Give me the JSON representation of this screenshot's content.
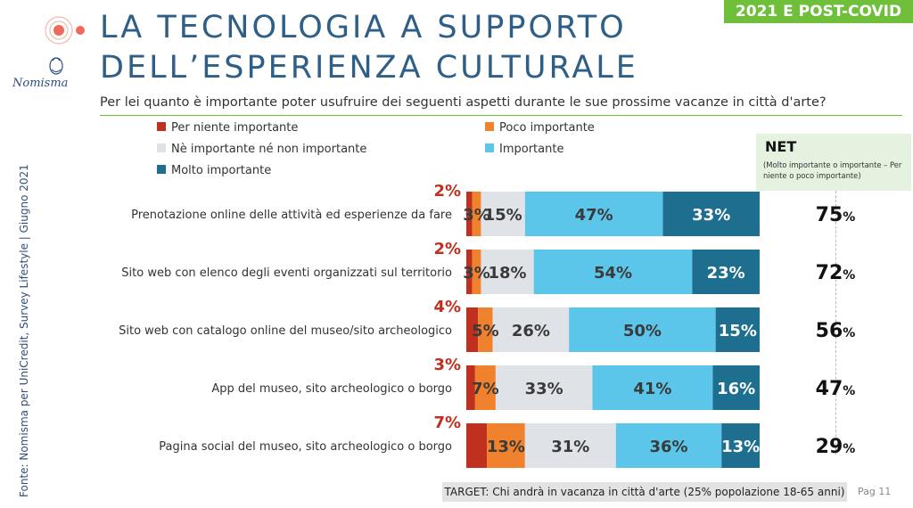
{
  "header": {
    "title_line1": "LA TECNOLOGIA A SUPPORTO",
    "title_line2": "DELL’ESPERIENZA CULTURALE",
    "badge": "2021 E POST-COVID",
    "brand": "Nomisma",
    "subtitle": "Per lei quanto è importante poter usufruire dei seguenti aspetti durante le sue prossime vacanze in città d'arte?"
  },
  "colors": {
    "per_niente": "#c0301e",
    "poco": "#f0822d",
    "ne_ne": "#dfe3e8",
    "importante": "#5cc6ea",
    "molto": "#1e6f8f",
    "accent_green": "#6fbf3b",
    "title_blue": "#2f5f86",
    "first_pct_red": "#c0301e"
  },
  "net": {
    "title": "NET",
    "description": "(Molto importante o importante – Per niente o poco importante)"
  },
  "source": "Fonte: Nomisma per UniCredit, Survey Lifestyle | Giugno 2021",
  "target": "TARGET: Chi andrà in vacanza in città d'arte (25% popolazione 18-65 anni)",
  "page": "Pag 11",
  "chart_data": {
    "type": "bar",
    "orientation": "horizontal",
    "stacked": true,
    "percent_suffix": "%",
    "categories": [
      "Prenotazione online delle attività ed esperienze da fare",
      "Sito web con elenco degli eventi organizzati sul territorio",
      "Sito web con catalogo online del museo/sito archeologico",
      "App del museo, sito archeologico o borgo",
      "Pagina social del museo, sito archeologico o borgo"
    ],
    "series": [
      {
        "name": "Per niente importante",
        "color_key": "per_niente",
        "values": [
          2,
          2,
          4,
          3,
          7
        ]
      },
      {
        "name": "Poco importante",
        "color_key": "poco",
        "values": [
          3,
          3,
          5,
          7,
          13
        ]
      },
      {
        "name": "Nè importante né non importante",
        "color_key": "ne_ne",
        "values": [
          15,
          18,
          26,
          33,
          31
        ]
      },
      {
        "name": "Importante",
        "color_key": "importante",
        "values": [
          47,
          54,
          50,
          41,
          36
        ]
      },
      {
        "name": "Molto importante",
        "color_key": "molto",
        "values": [
          33,
          23,
          15,
          16,
          13
        ]
      }
    ],
    "net_values": [
      75,
      72,
      56,
      47,
      29
    ],
    "legend_position": "top",
    "grid": false
  }
}
